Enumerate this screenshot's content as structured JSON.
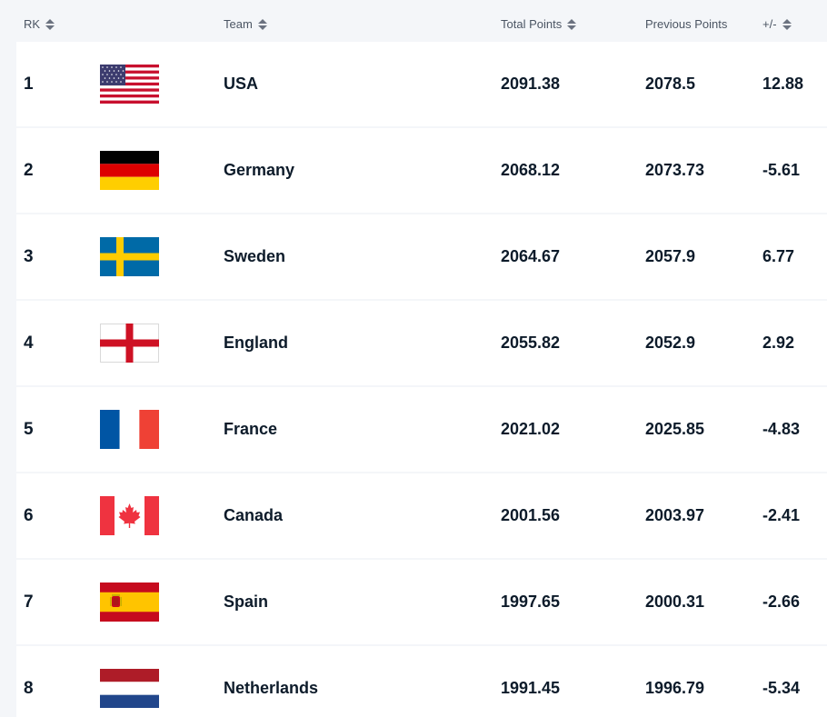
{
  "header": {
    "rk": "RK",
    "team": "Team",
    "total": "Total Points",
    "previous": "Previous Points",
    "diff": "+/-"
  },
  "rows": [
    {
      "rank": "1",
      "team": "USA",
      "flag_icon": "usa-flag-icon",
      "total": "2091.38",
      "previous": "2078.5",
      "diff": "12.88"
    },
    {
      "rank": "2",
      "team": "Germany",
      "flag_icon": "germany-flag-icon",
      "total": "2068.12",
      "previous": "2073.73",
      "diff": "-5.61"
    },
    {
      "rank": "3",
      "team": "Sweden",
      "flag_icon": "sweden-flag-icon",
      "total": "2064.67",
      "previous": "2057.9",
      "diff": "6.77"
    },
    {
      "rank": "4",
      "team": "England",
      "flag_icon": "england-flag-icon",
      "total": "2055.82",
      "previous": "2052.9",
      "diff": "2.92"
    },
    {
      "rank": "5",
      "team": "France",
      "flag_icon": "france-flag-icon",
      "total": "2021.02",
      "previous": "2025.85",
      "diff": "-4.83"
    },
    {
      "rank": "6",
      "team": "Canada",
      "flag_icon": "canada-flag-icon",
      "total": "2001.56",
      "previous": "2003.97",
      "diff": "-2.41"
    },
    {
      "rank": "7",
      "team": "Spain",
      "flag_icon": "spain-flag-icon",
      "total": "1997.65",
      "previous": "2000.31",
      "diff": "-2.66"
    },
    {
      "rank": "8",
      "team": "Netherlands",
      "flag_icon": "netherlands-flag-icon",
      "total": "1991.45",
      "previous": "1996.79",
      "diff": "-5.34"
    }
  ],
  "colors": {
    "text": "#0d1b2a",
    "header_text": "#4b5563",
    "row_bg": "#ffffff",
    "page_bg": "#f4f6f9"
  }
}
